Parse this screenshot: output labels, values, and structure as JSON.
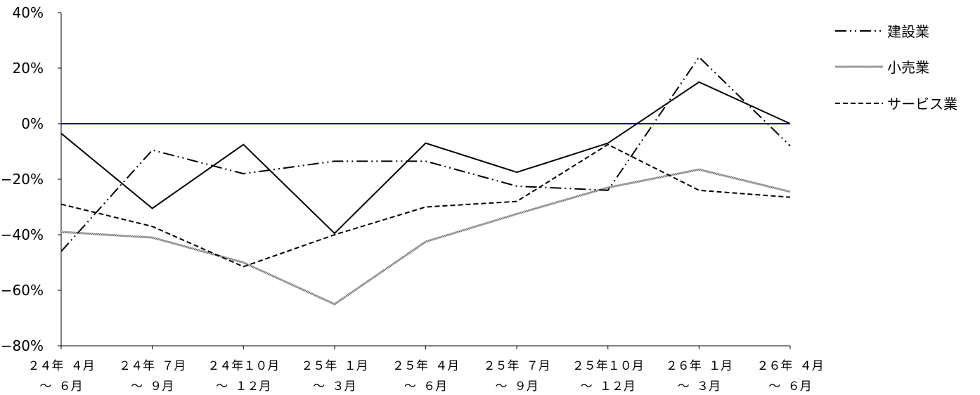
{
  "chart_data": {
    "type": "line",
    "title": "",
    "xlabel": "",
    "ylabel": "",
    "ylim": [
      -80,
      40
    ],
    "y_ticks": [
      40,
      20,
      0,
      -20,
      -40,
      -60,
      -80
    ],
    "y_tick_labels": [
      "40%",
      "20%",
      "0%",
      "−20%",
      "−40%",
      "−60%",
      "−80%"
    ],
    "categories": [
      {
        "line1": "２４年 ４月",
        "line2": "～ ６月"
      },
      {
        "line1": "２４年 ７月",
        "line2": "～ ９月"
      },
      {
        "line1": "２４年１０月",
        "line2": "～ １２月"
      },
      {
        "line1": "２５年 １月",
        "line2": "～ ３月"
      },
      {
        "line1": "２５年 ４月",
        "line2": "～ ６月"
      },
      {
        "line1": "２５年 ７月",
        "line2": "～ ９月"
      },
      {
        "line1": "２５年１０月",
        "line2": "～ １２月"
      },
      {
        "line1": "２６年 １月",
        "line2": "～ ３月"
      },
      {
        "line1": "２６年 ４月",
        "line2": "～ ６月"
      }
    ],
    "legend_position": "top-right",
    "series": [
      {
        "name": "建設業",
        "style": "dashdotdot",
        "color": "#000000",
        "values": [
          -46,
          -9.5,
          -18,
          -13.5,
          -13.5,
          -22.5,
          -24,
          24,
          -8
        ]
      },
      {
        "name": "小売業",
        "style": "textured",
        "color": "#999999",
        "values": [
          -39,
          -41,
          -50,
          -65,
          -42.5,
          -32.5,
          -23,
          -16.5,
          -24.5
        ]
      },
      {
        "name": "サービス業",
        "style": "dashed",
        "color": "#000000",
        "values": [
          -29,
          -37,
          -51.5,
          -40,
          -30,
          -28,
          -7.5,
          -24,
          -26.5
        ]
      },
      {
        "name": "",
        "style": "solid",
        "color": "#000000",
        "values": [
          -3.5,
          -30.5,
          -7.5,
          -39.5,
          -7,
          -17.5,
          -7,
          15,
          0
        ]
      }
    ],
    "zero_line_color": "#000080"
  }
}
